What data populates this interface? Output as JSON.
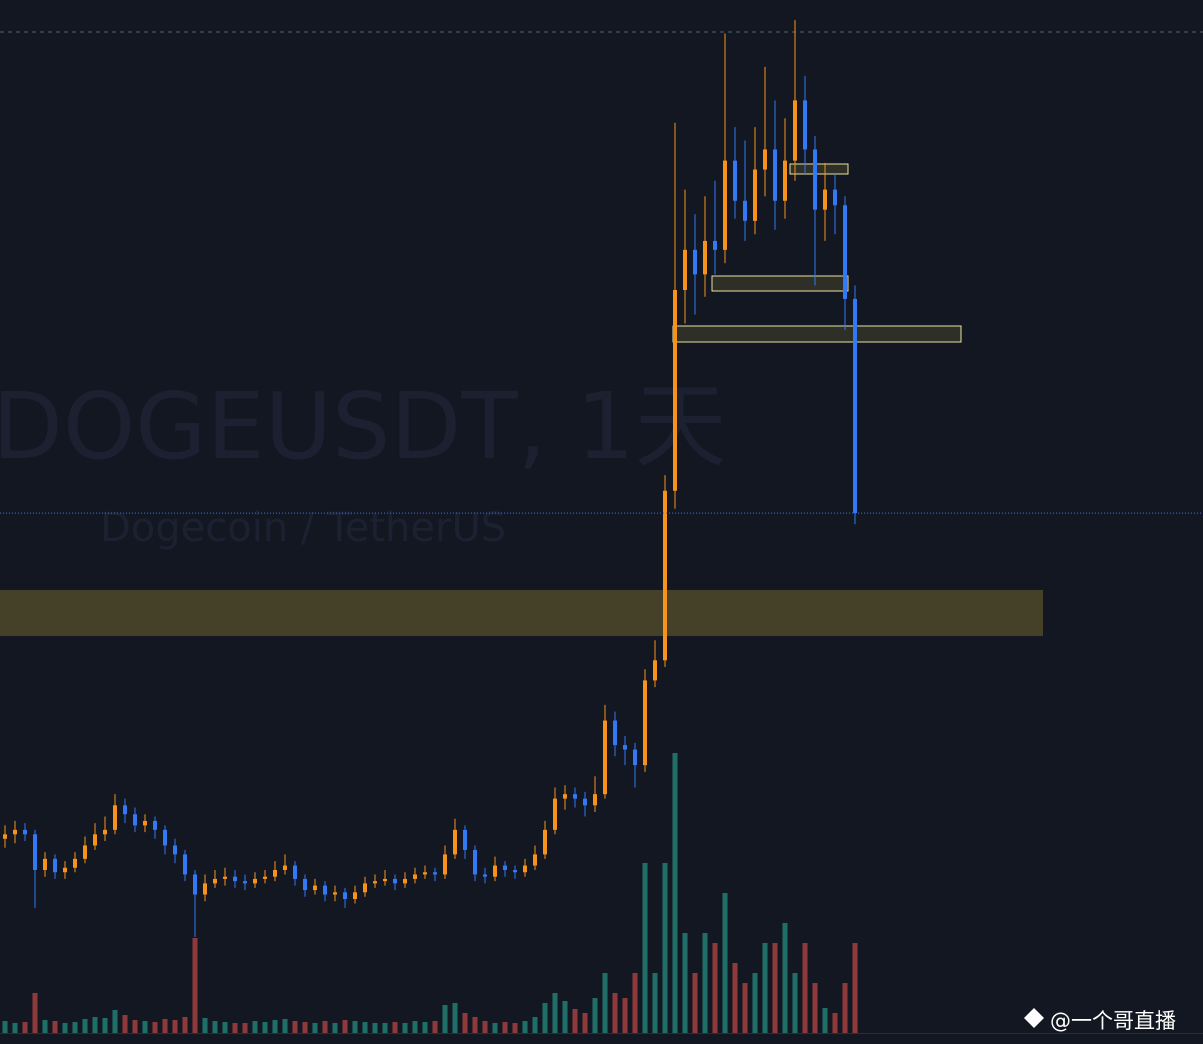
{
  "chart_data": {
    "type": "candlestick",
    "title": "DOGEUSDT, 1天",
    "subtitle": "Dogecoin / TetherUS",
    "ylim": [
      0.025,
      0.493
    ],
    "volume_lim": [
      0,
      30
    ],
    "up_color": "#f7931a",
    "down_color": "#3179f5",
    "volume_up_color": "#1f6f68",
    "volume_down_color": "#8e3a3a",
    "candles": [
      [
        0.117,
        0.123,
        0.113,
        0.119
      ],
      [
        0.119,
        0.125,
        0.115,
        0.121
      ],
      [
        0.121,
        0.124,
        0.116,
        0.119
      ],
      [
        0.119,
        0.121,
        0.086,
        0.103
      ],
      [
        0.103,
        0.111,
        0.1,
        0.108
      ],
      [
        0.108,
        0.11,
        0.099,
        0.102
      ],
      [
        0.102,
        0.107,
        0.099,
        0.104
      ],
      [
        0.104,
        0.111,
        0.102,
        0.108
      ],
      [
        0.108,
        0.118,
        0.106,
        0.114
      ],
      [
        0.114,
        0.124,
        0.112,
        0.119
      ],
      [
        0.119,
        0.127,
        0.116,
        0.121
      ],
      [
        0.121,
        0.137,
        0.119,
        0.132
      ],
      [
        0.132,
        0.135,
        0.124,
        0.128
      ],
      [
        0.128,
        0.131,
        0.12,
        0.123
      ],
      [
        0.123,
        0.128,
        0.12,
        0.125
      ],
      [
        0.125,
        0.127,
        0.117,
        0.121
      ],
      [
        0.121,
        0.123,
        0.11,
        0.114
      ],
      [
        0.114,
        0.117,
        0.106,
        0.11
      ],
      [
        0.11,
        0.112,
        0.098,
        0.101
      ],
      [
        0.101,
        0.103,
        0.073,
        0.092
      ],
      [
        0.092,
        0.101,
        0.089,
        0.097
      ],
      [
        0.097,
        0.103,
        0.095,
        0.099
      ],
      [
        0.099,
        0.104,
        0.096,
        0.1
      ],
      [
        0.1,
        0.103,
        0.095,
        0.098
      ],
      [
        0.098,
        0.101,
        0.094,
        0.097
      ],
      [
        0.097,
        0.102,
        0.095,
        0.099
      ],
      [
        0.099,
        0.103,
        0.097,
        0.1
      ],
      [
        0.1,
        0.107,
        0.098,
        0.103
      ],
      [
        0.103,
        0.11,
        0.101,
        0.105
      ],
      [
        0.105,
        0.107,
        0.096,
        0.099
      ],
      [
        0.099,
        0.101,
        0.091,
        0.094
      ],
      [
        0.094,
        0.099,
        0.092,
        0.096
      ],
      [
        0.096,
        0.098,
        0.089,
        0.092
      ],
      [
        0.092,
        0.096,
        0.089,
        0.093
      ],
      [
        0.093,
        0.095,
        0.086,
        0.09
      ],
      [
        0.09,
        0.096,
        0.088,
        0.093
      ],
      [
        0.093,
        0.1,
        0.091,
        0.097
      ],
      [
        0.097,
        0.101,
        0.095,
        0.098
      ],
      [
        0.098,
        0.103,
        0.096,
        0.099
      ],
      [
        0.099,
        0.101,
        0.094,
        0.097
      ],
      [
        0.097,
        0.102,
        0.095,
        0.099
      ],
      [
        0.099,
        0.104,
        0.097,
        0.101
      ],
      [
        0.101,
        0.105,
        0.099,
        0.102
      ],
      [
        0.102,
        0.104,
        0.098,
        0.101
      ],
      [
        0.101,
        0.114,
        0.099,
        0.11
      ],
      [
        0.11,
        0.126,
        0.108,
        0.121
      ],
      [
        0.121,
        0.123,
        0.108,
        0.112
      ],
      [
        0.112,
        0.114,
        0.098,
        0.101
      ],
      [
        0.101,
        0.104,
        0.097,
        0.1
      ],
      [
        0.1,
        0.109,
        0.098,
        0.105
      ],
      [
        0.105,
        0.107,
        0.1,
        0.103
      ],
      [
        0.103,
        0.105,
        0.099,
        0.102
      ],
      [
        0.102,
        0.108,
        0.1,
        0.105
      ],
      [
        0.105,
        0.114,
        0.103,
        0.11
      ],
      [
        0.11,
        0.125,
        0.108,
        0.121
      ],
      [
        0.121,
        0.14,
        0.119,
        0.135
      ],
      [
        0.135,
        0.141,
        0.13,
        0.137
      ],
      [
        0.137,
        0.14,
        0.131,
        0.135
      ],
      [
        0.135,
        0.138,
        0.127,
        0.132
      ],
      [
        0.132,
        0.145,
        0.129,
        0.137
      ],
      [
        0.137,
        0.177,
        0.135,
        0.17
      ],
      [
        0.17,
        0.174,
        0.154,
        0.159
      ],
      [
        0.159,
        0.163,
        0.15,
        0.157
      ],
      [
        0.157,
        0.16,
        0.14,
        0.15
      ],
      [
        0.15,
        0.193,
        0.147,
        0.188
      ],
      [
        0.188,
        0.206,
        0.185,
        0.197
      ],
      [
        0.197,
        0.28,
        0.194,
        0.273
      ],
      [
        0.273,
        0.438,
        0.265,
        0.363
      ],
      [
        0.363,
        0.408,
        0.348,
        0.381
      ],
      [
        0.381,
        0.397,
        0.352,
        0.37
      ],
      [
        0.37,
        0.405,
        0.36,
        0.385
      ],
      [
        0.385,
        0.412,
        0.37,
        0.381
      ],
      [
        0.381,
        0.478,
        0.375,
        0.421
      ],
      [
        0.421,
        0.436,
        0.395,
        0.403
      ],
      [
        0.403,
        0.43,
        0.385,
        0.394
      ],
      [
        0.394,
        0.436,
        0.388,
        0.417
      ],
      [
        0.417,
        0.463,
        0.405,
        0.426
      ],
      [
        0.426,
        0.448,
        0.39,
        0.403
      ],
      [
        0.403,
        0.44,
        0.395,
        0.421
      ],
      [
        0.421,
        0.484,
        0.412,
        0.448
      ],
      [
        0.448,
        0.459,
        0.415,
        0.426
      ],
      [
        0.426,
        0.432,
        0.365,
        0.399
      ],
      [
        0.399,
        0.42,
        0.385,
        0.408
      ],
      [
        0.408,
        0.415,
        0.388,
        0.401
      ],
      [
        0.401,
        0.405,
        0.345,
        0.359
      ],
      [
        0.359,
        0.365,
        0.258,
        0.263
      ]
    ],
    "volume": [
      1.2,
      1.0,
      1.1,
      4.0,
      1.3,
      1.2,
      1.0,
      1.1,
      1.4,
      1.6,
      1.5,
      2.3,
      1.8,
      1.3,
      1.2,
      1.1,
      1.4,
      1.3,
      1.6,
      9.5,
      1.5,
      1.2,
      1.1,
      1.0,
      1.0,
      1.2,
      1.1,
      1.3,
      1.4,
      1.2,
      1.1,
      1.0,
      1.2,
      1.0,
      1.3,
      1.2,
      1.1,
      1.0,
      1.0,
      1.1,
      1.0,
      1.2,
      1.1,
      1.2,
      2.8,
      3.0,
      2.0,
      1.6,
      1.2,
      1.0,
      1.1,
      1.0,
      1.2,
      1.6,
      3.0,
      4.0,
      3.2,
      2.4,
      2.0,
      3.5,
      6.0,
      4.0,
      3.5,
      6.0,
      17.0,
      6.0,
      17.0,
      28.0,
      10.0,
      6.0,
      10.0,
      9.0,
      14.0,
      7.0,
      5.0,
      6.0,
      9.0,
      9.0,
      11.0,
      6.0,
      9.0,
      5.0,
      2.5,
      2.0,
      5.0,
      9.0
    ]
  },
  "watermark": "@一个哥直播"
}
